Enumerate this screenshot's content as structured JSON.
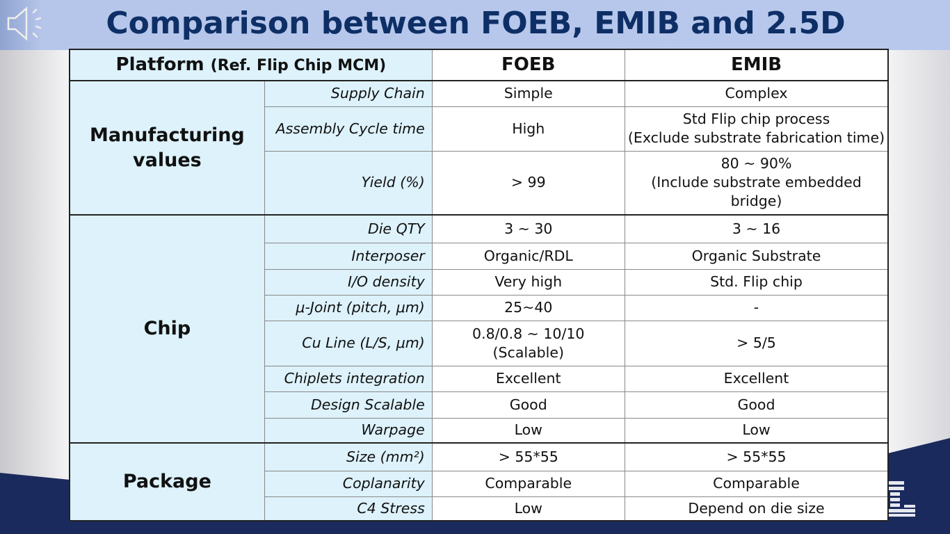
{
  "title": "Comparison between FOEB, EMIB and 2.5D",
  "header": {
    "platform": "Platform",
    "platform_ref": "(Ref. Flip Chip MCM)",
    "col1": "FOEB",
    "col2": "EMIB"
  },
  "groups": [
    {
      "name": "Manufacturing values",
      "rows": [
        {
          "label": "Supply Chain",
          "foeb": "Simple",
          "emib": "Complex"
        },
        {
          "label": "Assembly Cycle time",
          "foeb": "High",
          "emib": "Std Flip chip process\n(Exclude substrate fabrication time)"
        },
        {
          "label": "Yield (%)",
          "foeb": "> 99",
          "emib": "80 ~ 90%\n(Include substrate embedded\nbridge)"
        }
      ]
    },
    {
      "name": "Chip",
      "rows": [
        {
          "label": "Die QTY",
          "foeb": "3 ~ 30",
          "emib": "3 ~ 16"
        },
        {
          "label": "Interposer",
          "foeb": "Organic/RDL",
          "emib": "Organic Substrate"
        },
        {
          "label": "I/O density",
          "foeb": "Very high",
          "emib": "Std. Flip chip"
        },
        {
          "label": "μ-Joint (pitch, μm)",
          "foeb": "25~40",
          "emib": "-"
        },
        {
          "label": "Cu Line (L/S, μm)",
          "foeb": "0.8/0.8 ~ 10/10\n(Scalable)",
          "emib": "> 5/5"
        },
        {
          "label": "Chiplets integration",
          "foeb": "Excellent",
          "emib": "Excellent"
        },
        {
          "label": "Design Scalable",
          "foeb": "Good",
          "emib": "Good"
        },
        {
          "label": "Warpage",
          "foeb": "Low",
          "emib": "Low"
        }
      ]
    },
    {
      "name": "Package",
      "rows": [
        {
          "label": "Size (mm²)",
          "foeb": "> 55*55",
          "emib": "> 55*55"
        },
        {
          "label": "Coplanarity",
          "foeb": "Comparable",
          "emib": "Comparable"
        },
        {
          "label": "C4 Stress",
          "foeb": "Low",
          "emib": "Depend on die size"
        }
      ]
    }
  ]
}
